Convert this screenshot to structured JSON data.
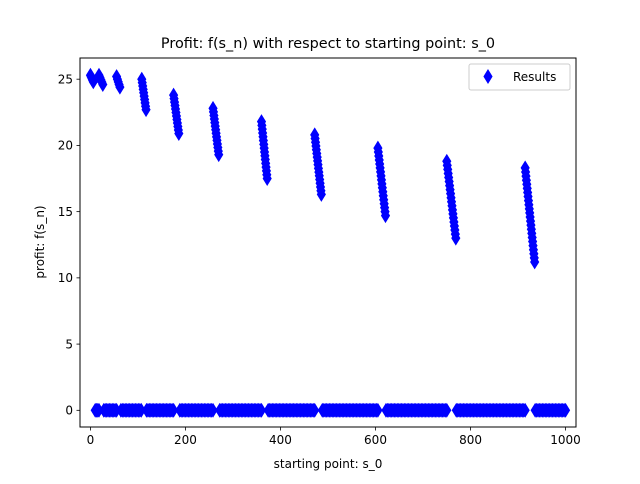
{
  "chart_data": {
    "type": "scatter",
    "title": "Profit: f(s_n) with respect to starting point: s_0",
    "xlabel": "starting point: s_0",
    "ylabel": "profit: f(s_n)",
    "xlim": [
      -22,
      1022
    ],
    "ylim": [
      -1.26,
      26.6
    ],
    "xticks": [
      0,
      200,
      400,
      600,
      800,
      1000
    ],
    "yticks": [
      0,
      5,
      10,
      15,
      20,
      25
    ],
    "grid": false,
    "legend": {
      "location": "upper right"
    },
    "marker": "thin-diamond",
    "color": "#0000ff",
    "series": [
      {
        "name": "Results",
        "clusters": [
          {
            "x_start": 0,
            "x_end": 6,
            "y_start": 25.3,
            "y_end": 24.8
          },
          {
            "x_start": 18,
            "x_end": 26,
            "y_start": 25.3,
            "y_end": 24.6
          },
          {
            "x_start": 55,
            "x_end": 62,
            "y_start": 25.2,
            "y_end": 24.4
          },
          {
            "x_start": 108,
            "x_end": 117,
            "y_start": 25.0,
            "y_end": 22.7
          },
          {
            "x_start": 175,
            "x_end": 186,
            "y_start": 23.8,
            "y_end": 20.9
          },
          {
            "x_start": 258,
            "x_end": 270,
            "y_start": 22.8,
            "y_end": 19.3
          },
          {
            "x_start": 360,
            "x_end": 372,
            "y_start": 21.8,
            "y_end": 17.5
          },
          {
            "x_start": 472,
            "x_end": 486,
            "y_start": 20.8,
            "y_end": 16.3
          },
          {
            "x_start": 605,
            "x_end": 621,
            "y_start": 19.8,
            "y_end": 14.7
          },
          {
            "x_start": 750,
            "x_end": 769,
            "y_start": 18.8,
            "y_end": 13.0
          },
          {
            "x_start": 915,
            "x_end": 935,
            "y_start": 18.3,
            "y_end": 11.2
          }
        ],
        "zero_profit_x_ranges": [
          [
            10,
            18
          ],
          [
            28,
            55
          ],
          [
            64,
            107
          ],
          [
            118,
            175
          ],
          [
            188,
            258
          ],
          [
            272,
            360
          ],
          [
            374,
            472
          ],
          [
            488,
            605
          ],
          [
            622,
            750
          ],
          [
            770,
            915
          ],
          [
            936,
            1000
          ]
        ]
      }
    ]
  }
}
